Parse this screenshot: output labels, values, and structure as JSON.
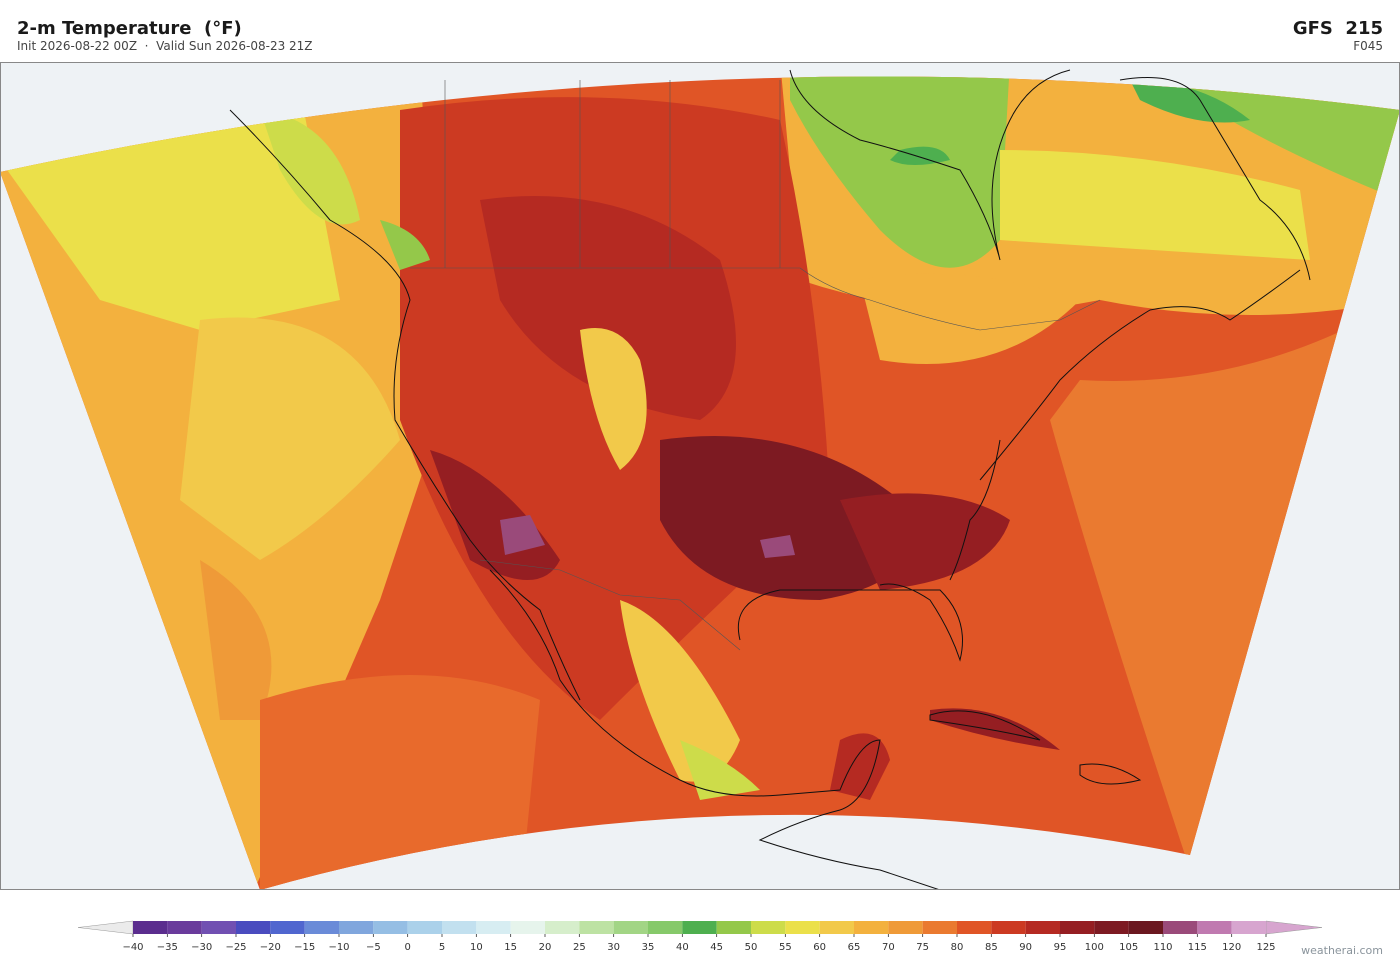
{
  "header": {
    "title": "2-m Temperature  (°F)",
    "subtitle": "Init 2026-08-22 00Z  ·  Valid Sun 2026-08-23 21Z",
    "model": "GFS  215",
    "forecast_hour": "F045"
  },
  "colorbar": {
    "ticks": [
      {
        "value": -40,
        "label": "−40"
      },
      {
        "value": -35,
        "label": "−35"
      },
      {
        "value": -30,
        "label": "−30"
      },
      {
        "value": -25,
        "label": "−25"
      },
      {
        "value": -20,
        "label": "−20"
      },
      {
        "value": -15,
        "label": "−15"
      },
      {
        "value": -10,
        "label": "−10"
      },
      {
        "value": -5,
        "label": "−5"
      },
      0,
      5,
      10,
      15,
      20,
      25,
      30,
      35,
      40,
      45,
      50,
      55,
      60,
      65,
      70,
      75,
      80,
      85,
      90,
      95,
      100,
      105,
      110,
      115,
      120,
      125
    ],
    "colors": [
      "#5b2d8e",
      "#6a3b9c",
      "#7150b2",
      "#4a4cbf",
      "#5066cf",
      "#6a8bd8",
      "#80a6dd",
      "#95bee4",
      "#abd1ea",
      "#c2e0ef",
      "#d7edf2",
      "#e6f4ec",
      "#d6eecb",
      "#bde2a3",
      "#a2d585",
      "#86c96a",
      "#4eaf4f",
      "#94c84a",
      "#cddc4a",
      "#ebe04a",
      "#f2c94a",
      "#f3b13e",
      "#ef9a38",
      "#ea7a30",
      "#e05526",
      "#cc3a22",
      "#b52a22",
      "#951e22",
      "#7d1a22",
      "#6b1820",
      "#9a4a7a",
      "#c07ab0",
      "#d7a5cf"
    ],
    "extend_colors": [
      "#ebebeb",
      "#d7a5cf"
    ]
  },
  "credit": "weatherai.com"
}
